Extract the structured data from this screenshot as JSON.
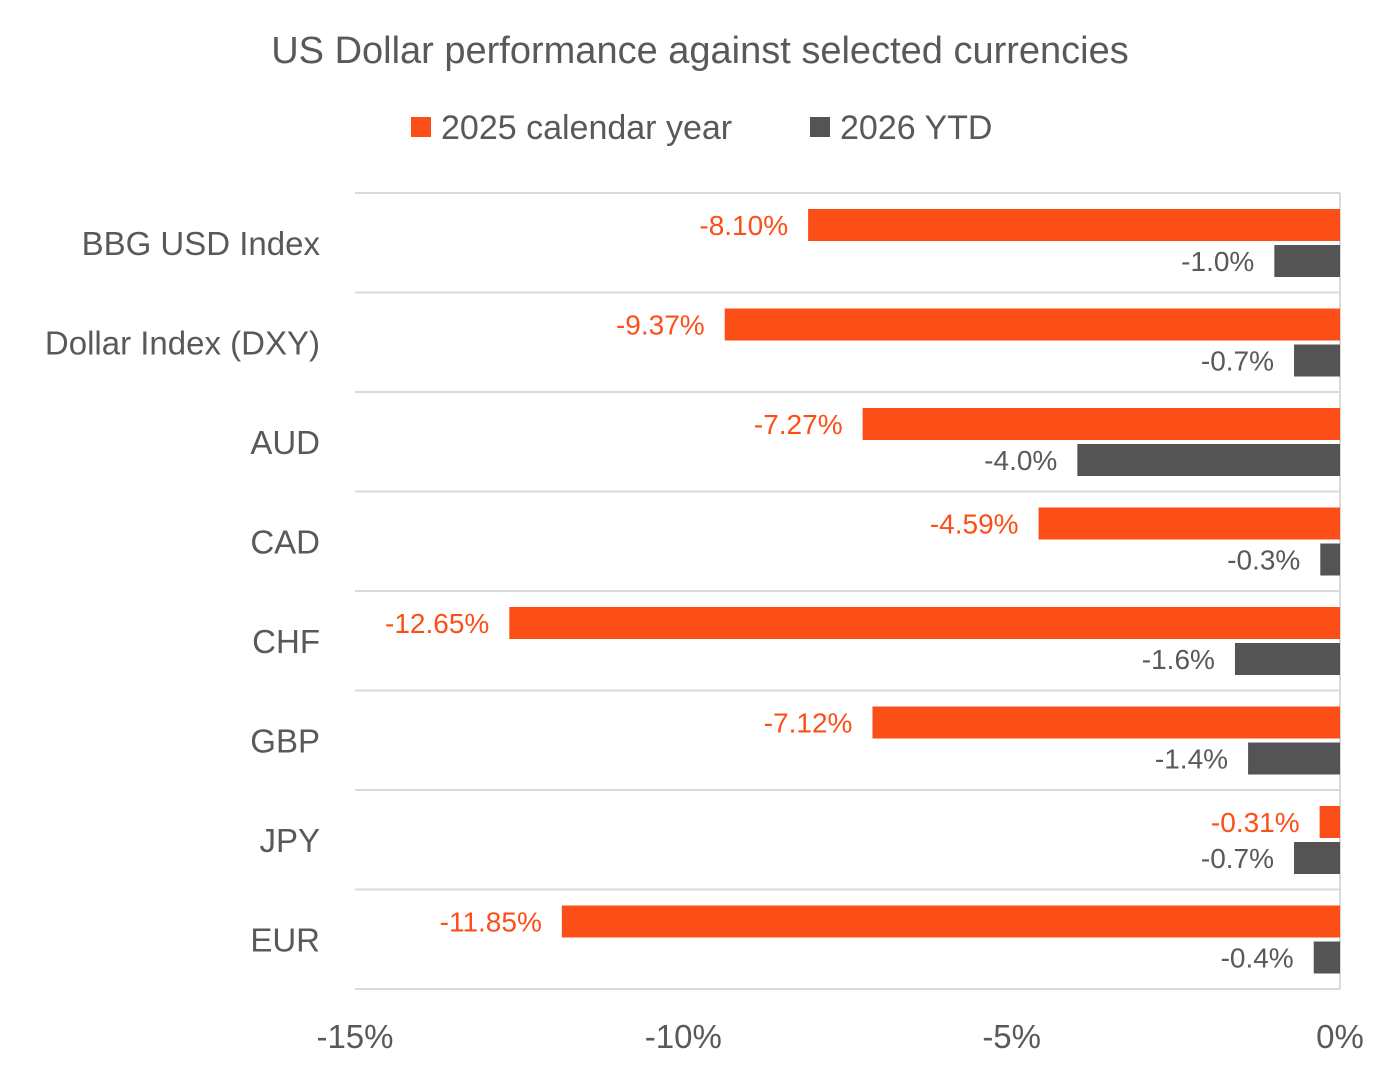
{
  "chart_data": {
    "type": "bar",
    "orientation": "horizontal",
    "title": "US Dollar performance against selected currencies",
    "categories": [
      "BBG USD Index",
      "Dollar Index (DXY)",
      "AUD",
      "CAD",
      "CHF",
      "GBP",
      "JPY",
      "EUR"
    ],
    "series": [
      {
        "name": "2025 calendar year",
        "color": "#FC4F17",
        "values": [
          -8.1,
          -9.37,
          -7.27,
          -4.59,
          -12.65,
          -7.12,
          -0.31,
          -11.85
        ],
        "labels": [
          "-8.10%",
          "-9.37%",
          "-7.27%",
          "-4.59%",
          "-12.65%",
          "-7.12%",
          "-0.31%",
          "-11.85%"
        ]
      },
      {
        "name": "2026 YTD",
        "color": "#545454",
        "values": [
          -1.0,
          -0.7,
          -4.0,
          -0.3,
          -1.6,
          -1.4,
          -0.7,
          -0.4
        ],
        "labels": [
          "-1.0%",
          "-0.7%",
          "-4.0%",
          "-0.3%",
          "-1.6%",
          "-1.4%",
          "-0.7%",
          "-0.4%"
        ]
      }
    ],
    "xlim": [
      -15,
      0
    ],
    "xticks": [
      -15,
      -10,
      -5,
      0
    ],
    "xtick_labels": [
      "-15%",
      "-10%",
      "-5%",
      "0%"
    ],
    "xlabel": "",
    "ylabel": "",
    "legend": "top",
    "grid": "horizontal separators between categories"
  }
}
